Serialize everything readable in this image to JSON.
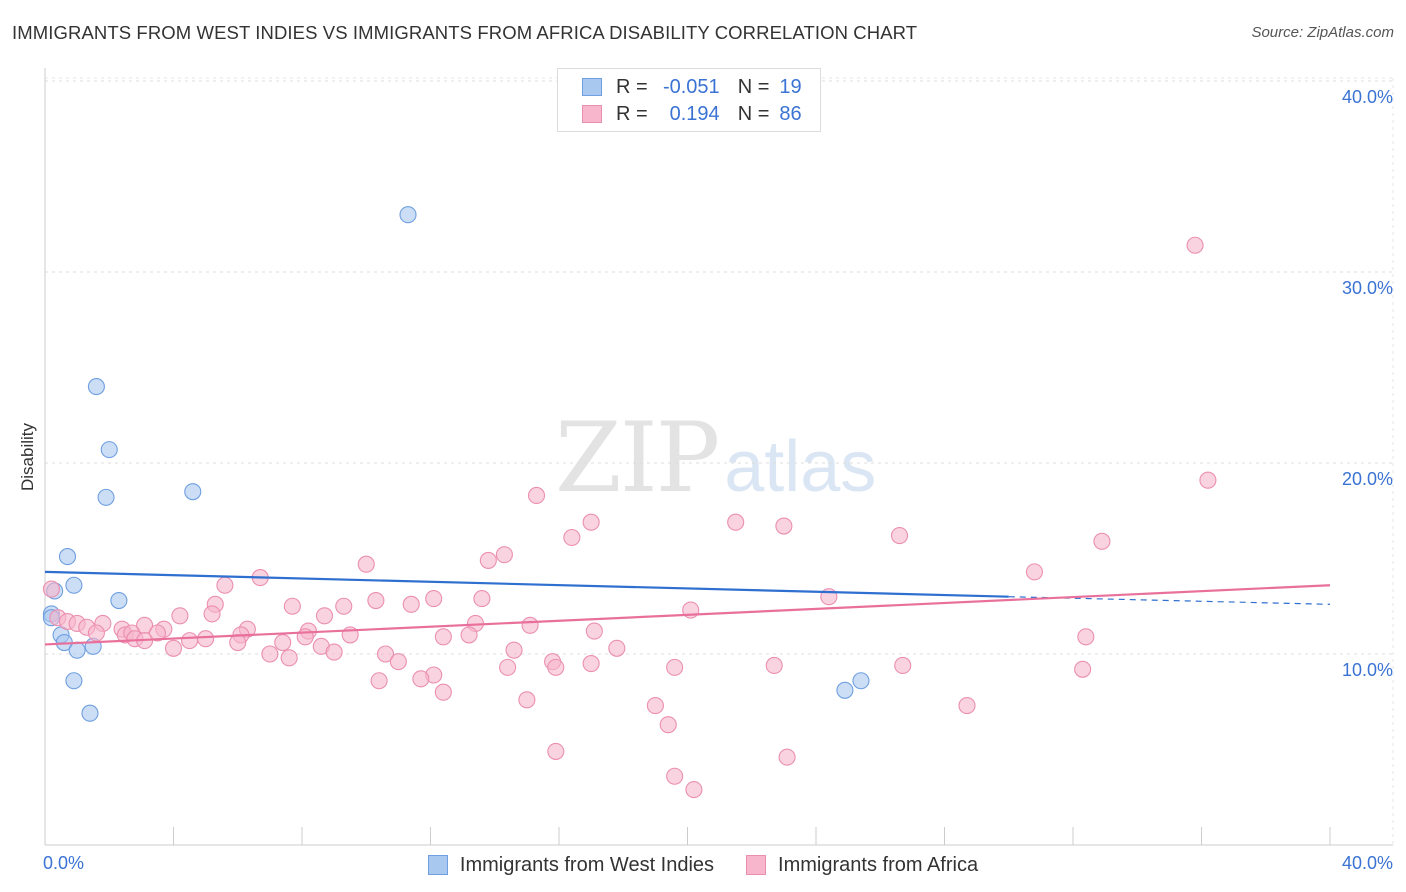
{
  "title": "IMMIGRANTS FROM WEST INDIES VS IMMIGRANTS FROM AFRICA DISABILITY CORRELATION CHART",
  "source": "Source: ZipAtlas.com",
  "watermark": {
    "zip": "ZIP",
    "atlas": "atlas"
  },
  "legend": {
    "rows": [
      {
        "r_label": "R =",
        "r_value": "-0.051",
        "n_label": "N =",
        "n_value": "19",
        "color": "#a9c8f0"
      },
      {
        "r_label": "R =",
        "r_value": "0.194",
        "n_label": "N =",
        "n_value": "86",
        "color": "#f7b6cb"
      }
    ]
  },
  "chart_data": {
    "type": "scatter",
    "title": "IMMIGRANTS FROM WEST INDIES VS IMMIGRANTS FROM AFRICA DISABILITY CORRELATION CHART",
    "xlabel": "",
    "ylabel": "Disability",
    "xlim": [
      0,
      40
    ],
    "ylim": [
      0,
      40
    ],
    "x_tick_labels": [
      "0.0%",
      "40.0%"
    ],
    "y_ticks": [
      10,
      20,
      30,
      40
    ],
    "y_tick_labels": [
      "10.0%",
      "20.0%",
      "30.0%",
      "40.0%"
    ],
    "grid": true,
    "series": [
      {
        "name": "Immigrants from West Indies",
        "color": "#a9c8f0",
        "stroke": "#6f9fe0",
        "line_color": "#2f6fcf",
        "trend": {
          "x0": 0,
          "y0": 14.3,
          "x1": 30,
          "y1": 13.0,
          "dash_to_x": 40,
          "dash_to_y": 12.6
        },
        "points": [
          [
            11.3,
            33.0
          ],
          [
            1.6,
            24.0
          ],
          [
            2.0,
            20.7
          ],
          [
            1.9,
            18.2
          ],
          [
            4.6,
            18.5
          ],
          [
            0.7,
            15.1
          ],
          [
            0.9,
            13.6
          ],
          [
            0.3,
            13.3
          ],
          [
            2.3,
            12.8
          ],
          [
            0.2,
            12.1
          ],
          [
            0.2,
            11.9
          ],
          [
            0.5,
            11.0
          ],
          [
            0.6,
            10.6
          ],
          [
            1.0,
            10.2
          ],
          [
            1.5,
            10.4
          ],
          [
            0.9,
            8.6
          ],
          [
            1.4,
            6.9
          ],
          [
            24.9,
            8.1
          ],
          [
            25.4,
            8.6
          ]
        ]
      },
      {
        "name": "Immigrants from Africa",
        "color": "#f7b6cb",
        "stroke": "#eb8fb0",
        "line_color": "#e9709b",
        "trend": {
          "x0": 0,
          "y0": 10.5,
          "x1": 40,
          "y1": 13.6
        },
        "points": [
          [
            35.8,
            31.4
          ],
          [
            36.2,
            19.1
          ],
          [
            15.3,
            18.3
          ],
          [
            17.0,
            16.9
          ],
          [
            21.5,
            16.9
          ],
          [
            23.0,
            16.7
          ],
          [
            26.6,
            16.2
          ],
          [
            32.9,
            15.9
          ],
          [
            16.4,
            16.1
          ],
          [
            14.3,
            15.2
          ],
          [
            13.8,
            14.9
          ],
          [
            10.0,
            14.7
          ],
          [
            30.8,
            14.3
          ],
          [
            6.7,
            14.0
          ],
          [
            5.6,
            13.6
          ],
          [
            0.2,
            13.4
          ],
          [
            12.1,
            12.9
          ],
          [
            10.3,
            12.8
          ],
          [
            13.6,
            12.9
          ],
          [
            11.4,
            12.6
          ],
          [
            5.3,
            12.6
          ],
          [
            24.4,
            13.0
          ],
          [
            7.7,
            12.5
          ],
          [
            9.3,
            12.5
          ],
          [
            20.1,
            12.3
          ],
          [
            4.2,
            12.0
          ],
          [
            5.2,
            12.1
          ],
          [
            8.7,
            12.0
          ],
          [
            0.4,
            11.9
          ],
          [
            0.7,
            11.7
          ],
          [
            1.0,
            11.6
          ],
          [
            1.8,
            11.6
          ],
          [
            3.1,
            11.5
          ],
          [
            13.4,
            11.6
          ],
          [
            15.1,
            11.5
          ],
          [
            1.3,
            11.4
          ],
          [
            2.4,
            11.3
          ],
          [
            3.7,
            11.3
          ],
          [
            6.3,
            11.3
          ],
          [
            8.2,
            11.2
          ],
          [
            17.1,
            11.2
          ],
          [
            1.6,
            11.1
          ],
          [
            2.5,
            11.0
          ],
          [
            2.7,
            11.1
          ],
          [
            3.5,
            11.1
          ],
          [
            6.1,
            11.0
          ],
          [
            9.5,
            11.0
          ],
          [
            13.2,
            11.0
          ],
          [
            8.1,
            10.9
          ],
          [
            2.8,
            10.8
          ],
          [
            3.1,
            10.7
          ],
          [
            4.5,
            10.7
          ],
          [
            6.0,
            10.6
          ],
          [
            12.4,
            10.9
          ],
          [
            32.4,
            10.9
          ],
          [
            5.0,
            10.8
          ],
          [
            7.4,
            10.6
          ],
          [
            8.6,
            10.4
          ],
          [
            4.0,
            10.3
          ],
          [
            17.8,
            10.3
          ],
          [
            14.6,
            10.2
          ],
          [
            9.0,
            10.1
          ],
          [
            7.0,
            10.0
          ],
          [
            10.6,
            10.0
          ],
          [
            7.6,
            9.8
          ],
          [
            11.0,
            9.6
          ],
          [
            15.8,
            9.6
          ],
          [
            17.0,
            9.5
          ],
          [
            14.4,
            9.3
          ],
          [
            19.6,
            9.3
          ],
          [
            26.7,
            9.4
          ],
          [
            22.7,
            9.4
          ],
          [
            32.3,
            9.2
          ],
          [
            15.9,
            9.3
          ],
          [
            12.1,
            8.9
          ],
          [
            11.7,
            8.7
          ],
          [
            10.4,
            8.6
          ],
          [
            12.4,
            8.0
          ],
          [
            15.0,
            7.6
          ],
          [
            19.0,
            7.3
          ],
          [
            28.7,
            7.3
          ],
          [
            19.4,
            6.3
          ],
          [
            15.9,
            4.9
          ],
          [
            23.1,
            4.6
          ],
          [
            19.6,
            3.6
          ],
          [
            20.2,
            2.9
          ]
        ]
      }
    ]
  }
}
